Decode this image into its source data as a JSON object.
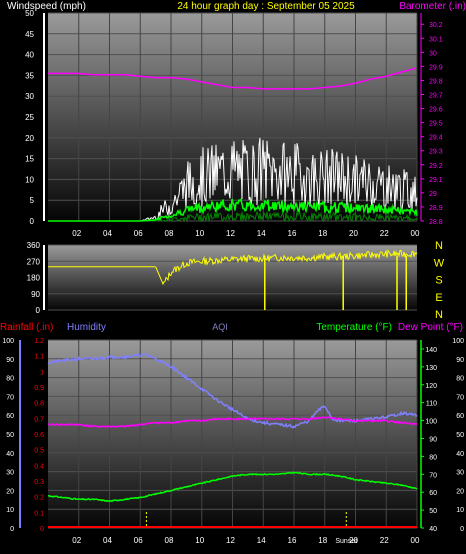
{
  "header": {
    "wind_label": "Windspeed (mph)",
    "title": "24 hour graph day : September 05 2025",
    "baro_label": "Barometer (.in)"
  },
  "colors": {
    "wind_label": "#ffffff",
    "title": "#ffff00",
    "baro": "#ff00ff",
    "wind_gust": "#ffffff",
    "wind_avg": "#00ff00",
    "direction": "#ffff00",
    "rainfall": "#ff0000",
    "humidity": "#8080ff",
    "aqi": "#8080c0",
    "temperature": "#00ff00",
    "dew_point": "#ff00ff"
  },
  "chart_data": [
    {
      "type": "line",
      "series": [
        {
          "name": "Windspeed (mph)",
          "x": [
            0,
            1,
            2,
            3,
            4,
            5,
            6,
            7,
            7.5,
            8,
            9,
            10,
            11,
            12,
            13,
            14,
            15,
            16,
            17,
            18,
            19,
            20,
            21,
            22,
            23,
            24
          ],
          "y": [
            0,
            0,
            0,
            0,
            0,
            0,
            0,
            1,
            3,
            4,
            9,
            11,
            12,
            13,
            12,
            13,
            12,
            12,
            11,
            11,
            11,
            10,
            10,
            9,
            8,
            7
          ]
        },
        {
          "name": "Barometer (.in)",
          "x": [
            0,
            1,
            2,
            3,
            4,
            5,
            6,
            7,
            8,
            9,
            10,
            11,
            12,
            13,
            14,
            15,
            16,
            17,
            18,
            19,
            20,
            21,
            22,
            23,
            24
          ],
          "y": [
            29.85,
            29.85,
            29.85,
            29.84,
            29.84,
            29.84,
            29.83,
            29.82,
            29.82,
            29.81,
            29.79,
            29.77,
            29.75,
            29.75,
            29.74,
            29.74,
            29.74,
            29.74,
            29.75,
            29.76,
            29.78,
            29.81,
            29.83,
            29.86,
            29.89
          ]
        }
      ],
      "x_ticks": [
        "02",
        "04",
        "06",
        "08",
        "10",
        "12",
        "14",
        "16",
        "18",
        "20",
        "22",
        "00"
      ],
      "y_left_ticks": [
        0,
        5,
        10,
        15,
        20,
        25,
        30,
        35,
        40,
        45,
        50
      ],
      "y_right_ticks": [
        "28.8",
        "28.9",
        "29",
        "29.1",
        "29.2",
        "29.3",
        "29.4",
        "29.5",
        "29.6",
        "29.7",
        "29.8",
        "29.9",
        "30",
        "30.1",
        "30.2"
      ],
      "xlim": [
        0,
        24
      ],
      "ylim_left": [
        0,
        50
      ],
      "ylim_right": [
        28.8,
        30.28
      ]
    },
    {
      "type": "line",
      "series": [
        {
          "name": "Wind Direction",
          "x": [
            0,
            1,
            2,
            3,
            4,
            5,
            6,
            7,
            7.5,
            8,
            9,
            10,
            11,
            12,
            13,
            14,
            15,
            16,
            17,
            18,
            19,
            20,
            21,
            22,
            23,
            24
          ],
          "y": [
            240,
            240,
            240,
            240,
            240,
            240,
            240,
            240,
            140,
            210,
            260,
            270,
            275,
            280,
            285,
            285,
            290,
            290,
            290,
            295,
            295,
            300,
            305,
            310,
            310,
            315
          ]
        }
      ],
      "y_left_ticks": [
        "360",
        "270",
        "180",
        "90",
        "0"
      ],
      "compass": [
        "N",
        "W",
        "S",
        "E",
        "N"
      ],
      "ylim": [
        0,
        360
      ]
    },
    {
      "type": "line",
      "labels": {
        "rainfall": "Rainfall (.in)",
        "humidity": "Humidity",
        "aqi": "AQI",
        "temperature": "Temperature (°F)",
        "dew_point": "Dew Point (°F)"
      },
      "series": [
        {
          "name": "Humidity",
          "x": [
            0,
            1,
            2,
            3,
            4,
            5,
            6,
            6.5,
            7,
            8,
            9,
            10,
            11,
            12,
            13,
            14,
            15,
            16,
            17,
            17.5,
            18,
            18.5,
            19,
            20,
            21,
            22,
            23,
            24
          ],
          "y": [
            88,
            89,
            90,
            90,
            91,
            91,
            92,
            92,
            90,
            86,
            80,
            74,
            68,
            63,
            58,
            56,
            55,
            54,
            57,
            62,
            65,
            58,
            57,
            57,
            58,
            59,
            61,
            60
          ]
        },
        {
          "name": "Temperature (°F)",
          "x": [
            0,
            1,
            2,
            3,
            4,
            5,
            6,
            7,
            8,
            9,
            10,
            11,
            12,
            13,
            14,
            15,
            16,
            17,
            18,
            19,
            20,
            21,
            22,
            23,
            24
          ],
          "y": [
            58,
            57,
            56,
            56,
            55,
            56,
            57,
            59,
            61,
            63,
            65,
            67,
            69,
            70,
            70,
            70,
            71,
            70,
            70,
            69,
            67,
            66,
            65,
            64,
            62
          ]
        },
        {
          "name": "Dew Point (°F)",
          "x": [
            0,
            1,
            2,
            3,
            4,
            5,
            6,
            7,
            8,
            9,
            10,
            11,
            12,
            13,
            14,
            15,
            16,
            17,
            18,
            19,
            20,
            21,
            22,
            23,
            24
          ],
          "y": [
            55,
            55,
            55,
            54,
            54,
            54,
            55,
            56,
            56,
            57,
            57,
            58,
            58,
            58,
            58,
            58,
            58,
            58,
            59,
            58,
            57,
            57,
            57,
            56,
            55
          ]
        },
        {
          "name": "Rainfall (.in)",
          "x": [
            0,
            24
          ],
          "y": [
            0,
            0
          ]
        }
      ],
      "x_ticks": [
        "02",
        "04",
        "06",
        "08",
        "10",
        "12",
        "14",
        "16",
        "18",
        "20",
        "22",
        "00"
      ],
      "sun_markers": [
        {
          "label": "",
          "x": 6.4
        },
        {
          "label": "Sunset",
          "x": 19.4
        }
      ],
      "y_rain_ticks": [
        "0",
        "0.1",
        "0.2",
        "0.3",
        "0.4",
        "0.5",
        "0.6",
        "0.7",
        "0.8",
        "0.9",
        "1",
        "1.1",
        "1.2"
      ],
      "y_hum_ticks": [
        "0",
        "10",
        "20",
        "30",
        "40",
        "50",
        "60",
        "70",
        "80",
        "90",
        "100"
      ],
      "y_temp_ticks": [
        "40",
        "50",
        "60",
        "70",
        "80",
        "90",
        "100",
        "110",
        "120",
        "130",
        "140"
      ],
      "y_dew_ticks": [
        "0",
        "10",
        "20",
        "30",
        "40",
        "50",
        "60",
        "70",
        "80",
        "90",
        "100"
      ],
      "ylim_rain": [
        0,
        1.2
      ],
      "ylim_hum": [
        0,
        100
      ],
      "ylim_temp": [
        40,
        145
      ],
      "ylim_dew": [
        0,
        100
      ]
    }
  ]
}
